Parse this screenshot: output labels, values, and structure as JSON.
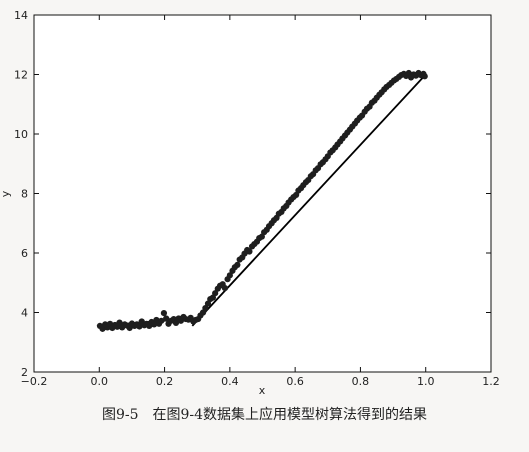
{
  "caption": "图9-5　在图9-4数据集上应用模型树算法得到的结果",
  "chart_data": {
    "type": "scatter",
    "title": "",
    "xlabel": "x",
    "ylabel": "y",
    "xlim": [
      -0.2,
      1.2
    ],
    "ylim": [
      2,
      14
    ],
    "x_ticks": [
      "−0.2",
      "0.0",
      "0.2",
      "0.4",
      "0.6",
      "0.8",
      "1.0",
      "1.2"
    ],
    "y_ticks": [
      "2",
      "4",
      "6",
      "8",
      "10",
      "12",
      "14"
    ],
    "grid": false,
    "legend": "none",
    "colors": {
      "points": "#1e1e1e",
      "line": "#000000"
    },
    "series": [
      {
        "type": "scatter",
        "x": [
          0.002,
          0.01,
          0.018,
          0.025,
          0.033,
          0.04,
          0.048,
          0.055,
          0.062,
          0.07,
          0.078,
          0.085,
          0.093,
          0.1,
          0.108,
          0.115,
          0.123,
          0.13,
          0.138,
          0.145,
          0.153,
          0.16,
          0.168,
          0.175,
          0.183,
          0.19,
          0.198,
          0.205,
          0.212,
          0.22,
          0.228,
          0.235,
          0.243,
          0.25,
          0.258,
          0.265,
          0.273,
          0.28,
          0.288,
          0.295,
          0.303,
          0.31,
          0.318,
          0.325,
          0.333,
          0.34,
          0.348,
          0.355,
          0.363,
          0.37,
          0.378,
          0.385,
          0.393,
          0.4,
          0.408,
          0.415,
          0.423,
          0.43,
          0.438,
          0.445,
          0.453,
          0.46,
          0.468,
          0.475,
          0.483,
          0.49,
          0.498,
          0.505,
          0.513,
          0.52,
          0.528,
          0.535,
          0.543,
          0.55,
          0.558,
          0.565,
          0.573,
          0.58,
          0.588,
          0.595,
          0.603,
          0.61,
          0.618,
          0.625,
          0.633,
          0.64,
          0.648,
          0.655,
          0.663,
          0.67,
          0.678,
          0.685,
          0.693,
          0.7,
          0.708,
          0.715,
          0.723,
          0.73,
          0.738,
          0.745,
          0.753,
          0.76,
          0.768,
          0.775,
          0.783,
          0.79,
          0.798,
          0.805,
          0.813,
          0.82,
          0.828,
          0.835,
          0.843,
          0.85,
          0.858,
          0.865,
          0.873,
          0.88,
          0.888,
          0.895,
          0.903,
          0.91,
          0.918,
          0.925,
          0.933,
          0.94,
          0.948,
          0.955,
          0.963,
          0.97,
          0.978,
          0.985,
          0.993,
          0.997
        ],
        "y": [
          3.55,
          3.45,
          3.6,
          3.5,
          3.62,
          3.48,
          3.58,
          3.52,
          3.66,
          3.5,
          3.6,
          3.56,
          3.48,
          3.63,
          3.55,
          3.6,
          3.53,
          3.7,
          3.57,
          3.62,
          3.55,
          3.68,
          3.6,
          3.75,
          3.62,
          3.72,
          3.98,
          3.8,
          3.62,
          3.72,
          3.78,
          3.65,
          3.8,
          3.72,
          3.85,
          3.78,
          3.76,
          3.82,
          3.7,
          3.75,
          3.78,
          3.9,
          4.0,
          4.15,
          4.3,
          4.45,
          4.5,
          4.65,
          4.8,
          4.9,
          4.95,
          4.82,
          5.12,
          5.25,
          5.4,
          5.52,
          5.6,
          5.78,
          5.85,
          5.98,
          6.1,
          6.05,
          6.22,
          6.3,
          6.38,
          6.5,
          6.55,
          6.7,
          6.78,
          6.9,
          7.0,
          7.1,
          7.18,
          7.32,
          7.38,
          7.5,
          7.58,
          7.7,
          7.8,
          7.88,
          7.95,
          8.1,
          8.18,
          8.28,
          8.38,
          8.45,
          8.58,
          8.65,
          8.78,
          8.85,
          8.98,
          9.05,
          9.15,
          9.25,
          9.38,
          9.45,
          9.55,
          9.65,
          9.75,
          9.85,
          9.95,
          10.05,
          10.15,
          10.25,
          10.35,
          10.45,
          10.55,
          10.62,
          10.75,
          10.85,
          10.92,
          11.05,
          11.12,
          11.22,
          11.32,
          11.4,
          11.5,
          11.58,
          11.65,
          11.72,
          11.8,
          11.85,
          11.92,
          11.98,
          12.02,
          11.95,
          12.05,
          11.9,
          12.0,
          11.96,
          12.05,
          11.98,
          12.02,
          11.94
        ]
      },
      {
        "type": "line",
        "x": [
          0.0,
          0.285,
          0.285,
          1.0
        ],
        "y": [
          3.55,
          3.8,
          3.55,
          12.0
        ]
      }
    ]
  }
}
